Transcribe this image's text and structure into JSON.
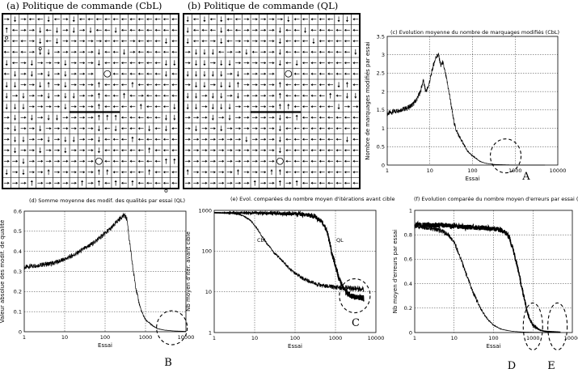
{
  "colors": {
    "ink": "#000000",
    "background": "#ffffff",
    "grid": "#000000"
  },
  "panel_titles": {
    "a": "(a) Politique de commande (CbL)",
    "b": "(b) Politique de commande (QL)"
  },
  "markers": {
    "A": "A",
    "B": "B",
    "C": "C",
    "D": "D",
    "E": "E"
  },
  "grid_panels": [
    {
      "id": "a",
      "cols": 21,
      "rows": 16,
      "goals": [
        [
          12,
          5
        ],
        [
          11,
          13
        ]
      ],
      "wall": {
        "row": 9,
        "from_col": 8,
        "to_col": 14
      },
      "corner_marks": [
        [
          0,
          2
        ],
        [
          4,
          3
        ],
        [
          19,
          16
        ]
      ],
      "arrows_encoding": "r=right l=left u=up d=down",
      "arrows": [
        "rdrlldlrdllllllllllll",
        "ulrrdldrdrdlldlllllll",
        "lllrdldrrrrrlllrllldl",
        "lllrddrrrrrdlldrlllll",
        "dlrdrrrdrrrdllllllldd",
        "ldrdrdrdrrr.llllllldl",
        "ddrrdurdrrrulllulllll",
        "drdrrdrddrrullulrllll",
        "dddrrrrdrrrullllullld",
        "rdrdrddrrrruuullllldd",
        "rdrrdrrrrrrdldllldldl",
        "rddrrdrddrrdlllulllll",
        "rdrrdrrdrrrdlllllulll",
        "rrdrrrrrrrr.llllllluu",
        "drdrrurrrrruullllulll",
        "rrrurrrrrurulululllll"
      ]
    },
    {
      "id": "b",
      "cols": 21,
      "rows": 16,
      "goals": [
        [
          12,
          5
        ],
        [
          11,
          13
        ]
      ],
      "wall": {
        "row": 9,
        "from_col": 8,
        "to_col": 14
      },
      "corner_marks": [],
      "arrows_encoding": "r=right l=left u=up d=down",
      "arrows": [
        "dldldllrrrrrdlllllddl",
        "dllldllrrrrdlldllllll",
        "dllrdlrrrrrdllldlllll",
        "rdddlrrdlrrdlllllllld",
        "rddrddrrrrrdldlllllll",
        "dddddrdrrrr.lllllllll",
        "rddrddurrrrulllllldul",
        "ddrddrdrrrrullllluldd",
        "ddrdddrrrrruullllldrr",
        "rrrdrdrrrrrdlulllllll",
        "rdrrdrrrrrrdlllllllll",
        "rrrrrrrdrrrdllllllldl",
        "rrrrrrrrrrrdlllllllll",
        "rrrrrrrrrrr.lllllllll",
        "urrrrrurrruulllllllll",
        "rrrrrrrrurrurulllllll"
      ]
    }
  ],
  "chart_data": [
    {
      "id": "c",
      "type": "line",
      "title": "(c) Evolution moyenne du nombre de marquages modifiés (CbL)",
      "xlabel": "Essai",
      "ylabel": "Nombre de marquages modifiés par essai",
      "xscale": "log",
      "xlim": [
        1,
        10000
      ],
      "ylim": [
        0,
        3.5
      ],
      "x_ticks": [
        1,
        10,
        100,
        1000,
        10000
      ],
      "x_tick_labels": [
        "1",
        "10",
        "100",
        "1000",
        "10000"
      ],
      "y_ticks": [
        0,
        0.5,
        1,
        1.5,
        2,
        2.5,
        3,
        3.5
      ],
      "y_tick_labels": [
        "0",
        "0.5",
        "1",
        "1.5",
        "2",
        "2.5",
        "3",
        "3.5"
      ],
      "marker": "A",
      "ellipse_center": [
        600,
        0.25
      ],
      "series": [
        {
          "name": "CbL",
          "x": [
            1,
            2,
            3,
            4,
            5,
            6,
            7,
            8,
            9,
            10,
            12,
            14,
            16,
            18,
            20,
            23,
            26,
            30,
            35,
            40,
            50,
            60,
            70,
            80,
            100,
            150,
            200,
            300,
            500,
            1000,
            2000,
            5000
          ],
          "y": [
            1.4,
            1.5,
            1.55,
            1.65,
            1.8,
            2.0,
            2.3,
            2.0,
            2.1,
            2.3,
            2.7,
            2.95,
            3.0,
            2.7,
            2.8,
            2.5,
            2.2,
            1.8,
            1.3,
            1.0,
            0.75,
            0.6,
            0.45,
            0.35,
            0.25,
            0.1,
            0.05,
            0.02,
            0.01,
            0.0,
            0.0,
            0.0
          ]
        }
      ]
    },
    {
      "id": "d",
      "type": "line",
      "title": "(d) Somme moyenne des modif. des qualités par essai (QL)",
      "xlabel": "Essai",
      "ylabel": "Valeur absolue des modif. de qualité",
      "xscale": "log",
      "xlim": [
        1,
        10000
      ],
      "ylim": [
        0,
        0.6
      ],
      "x_ticks": [
        1,
        10,
        100,
        1000,
        10000
      ],
      "x_tick_labels": [
        "1",
        "10",
        "100",
        "1000",
        "10000"
      ],
      "y_ticks": [
        0,
        0.1,
        0.2,
        0.3,
        0.4,
        0.5,
        0.6
      ],
      "y_tick_labels": [
        "0",
        "0.1",
        "0.2",
        "0.3",
        "0.4",
        "0.5",
        "0.6"
      ],
      "marker": "B",
      "ellipse_center": [
        4500,
        0.02
      ],
      "series": [
        {
          "name": "QL",
          "x": [
            1,
            2,
            5,
            10,
            20,
            50,
            100,
            150,
            200,
            250,
            300,
            350,
            400,
            500,
            600,
            700,
            800,
            1000,
            1500,
            2000,
            3000,
            5000,
            10000
          ],
          "y": [
            0.32,
            0.33,
            0.34,
            0.36,
            0.39,
            0.44,
            0.49,
            0.52,
            0.55,
            0.57,
            0.58,
            0.56,
            0.45,
            0.3,
            0.2,
            0.14,
            0.1,
            0.06,
            0.03,
            0.015,
            0.008,
            0.004,
            0.002
          ]
        }
      ]
    },
    {
      "id": "e",
      "type": "line",
      "title": "(e) Evol. comparées du nombre moyen d'itérations avant cible",
      "xlabel": "Essai",
      "ylabel": "Nb moyen d'itér. avant cible",
      "xscale": "log",
      "yscale": "log",
      "xlim": [
        1,
        10000
      ],
      "ylim": [
        1,
        1000
      ],
      "x_ticks": [
        1,
        10,
        100,
        1000,
        10000
      ],
      "x_tick_labels": [
        "1",
        "10",
        "100",
        "1000",
        "10000"
      ],
      "y_ticks": [
        1,
        10,
        100,
        1000
      ],
      "y_tick_labels": [
        "1",
        "10",
        "100",
        "1000"
      ],
      "marker": "C",
      "ellipse_center": [
        3000,
        8
      ],
      "series": [
        {
          "name": "CbL",
          "x": [
            1,
            3,
            5,
            8,
            10,
            15,
            20,
            30,
            50,
            70,
            100,
            150,
            200,
            300,
            500,
            1000,
            2000,
            5000
          ],
          "y": [
            900,
            850,
            750,
            560,
            420,
            230,
            150,
            90,
            55,
            38,
            28,
            22,
            19,
            16,
            14,
            13,
            12.5,
            12
          ]
        },
        {
          "name": "QL",
          "x": [
            1,
            10,
            100,
            200,
            300,
            400,
            500,
            600,
            700,
            800,
            1000,
            1200,
            1500,
            2000,
            2500,
            3000,
            5000
          ],
          "y": [
            870,
            860,
            830,
            780,
            700,
            600,
            470,
            320,
            180,
            90,
            40,
            22,
            13,
            9,
            8,
            7.5,
            7
          ]
        }
      ],
      "series_labels": [
        "CbL",
        "QL"
      ]
    },
    {
      "id": "f",
      "type": "line",
      "title": "(f) Evolution comparée du nombre moyen d'erreurs par essai (CbL/QL)",
      "xlabel": "Essai",
      "ylabel": "Nb moyen d'erreurs par essai",
      "xscale": "log",
      "xlim": [
        1,
        10000
      ],
      "ylim": [
        0,
        1
      ],
      "x_ticks": [
        1,
        10,
        100,
        1000,
        10000
      ],
      "x_tick_labels": [
        "1",
        "10",
        "100",
        "1000",
        "10000"
      ],
      "y_ticks": [
        0,
        0.2,
        0.4,
        0.6,
        0.8,
        1
      ],
      "y_tick_labels": [
        "0",
        "0.2",
        "0.4",
        "0.6",
        "0.8",
        "1"
      ],
      "markers": [
        "D",
        "E"
      ],
      "ellipse_centers": [
        [
          1000,
          0.05
        ],
        [
          4200,
          0.05
        ]
      ],
      "series": [
        {
          "name": "CbL",
          "x": [
            1,
            2,
            3,
            5,
            7,
            10,
            15,
            20,
            30,
            50,
            70,
            100,
            150,
            200,
            300,
            500,
            1000,
            2000,
            5000
          ],
          "y": [
            0.87,
            0.86,
            0.85,
            0.83,
            0.8,
            0.74,
            0.6,
            0.48,
            0.33,
            0.18,
            0.11,
            0.06,
            0.03,
            0.02,
            0.01,
            0.005,
            0.002,
            0.001,
            0.0
          ]
        },
        {
          "name": "QL",
          "x": [
            1,
            5,
            10,
            30,
            50,
            100,
            150,
            200,
            250,
            300,
            400,
            500,
            600,
            700,
            800,
            1000,
            1500,
            2000,
            5000
          ],
          "y": [
            0.88,
            0.88,
            0.87,
            0.86,
            0.86,
            0.85,
            0.84,
            0.82,
            0.78,
            0.7,
            0.55,
            0.4,
            0.28,
            0.18,
            0.12,
            0.06,
            0.02,
            0.01,
            0.003
          ]
        }
      ]
    }
  ]
}
